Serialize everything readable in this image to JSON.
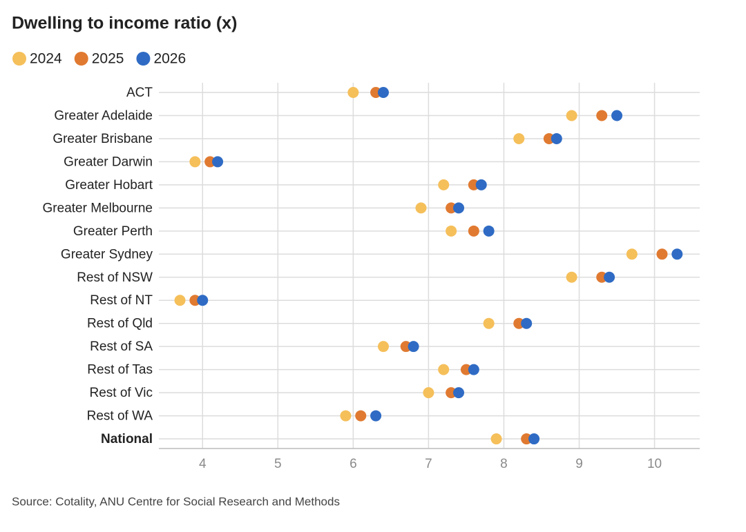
{
  "chart_data": {
    "type": "dot",
    "title": "Dwelling to income ratio (x)",
    "categories": [
      "ACT",
      "Greater Adelaide",
      "Greater Brisbane",
      "Greater Darwin",
      "Greater Hobart",
      "Greater Melbourne",
      "Greater Perth",
      "Greater Sydney",
      "Rest of NSW",
      "Rest of NT",
      "Rest of Qld",
      "Rest of SA",
      "Rest of Tas",
      "Rest of Vic",
      "Rest of WA",
      "National"
    ],
    "series": [
      {
        "name": "2024",
        "color": "#f5bf5a",
        "values": [
          6.0,
          8.9,
          8.2,
          3.9,
          7.2,
          6.9,
          7.3,
          9.7,
          8.9,
          3.7,
          7.8,
          6.4,
          7.2,
          7.0,
          5.9,
          7.9
        ]
      },
      {
        "name": "2025",
        "color": "#e07a31",
        "values": [
          6.3,
          9.3,
          8.6,
          4.1,
          7.6,
          7.3,
          7.6,
          10.1,
          9.3,
          3.9,
          8.2,
          6.7,
          7.5,
          7.3,
          6.1,
          8.3
        ]
      },
      {
        "name": "2026",
        "color": "#2f6bc4",
        "values": [
          6.4,
          9.5,
          8.7,
          4.2,
          7.7,
          7.4,
          7.8,
          10.3,
          9.4,
          4.0,
          8.3,
          6.8,
          7.6,
          7.4,
          6.3,
          8.4
        ]
      }
    ],
    "xlim": [
      3.42,
      10.6
    ],
    "xticks": [
      4,
      5,
      6,
      7,
      8,
      9,
      10
    ],
    "grid": true,
    "source": "Source: Cotality, ANU Centre for Social Research and Methods"
  }
}
